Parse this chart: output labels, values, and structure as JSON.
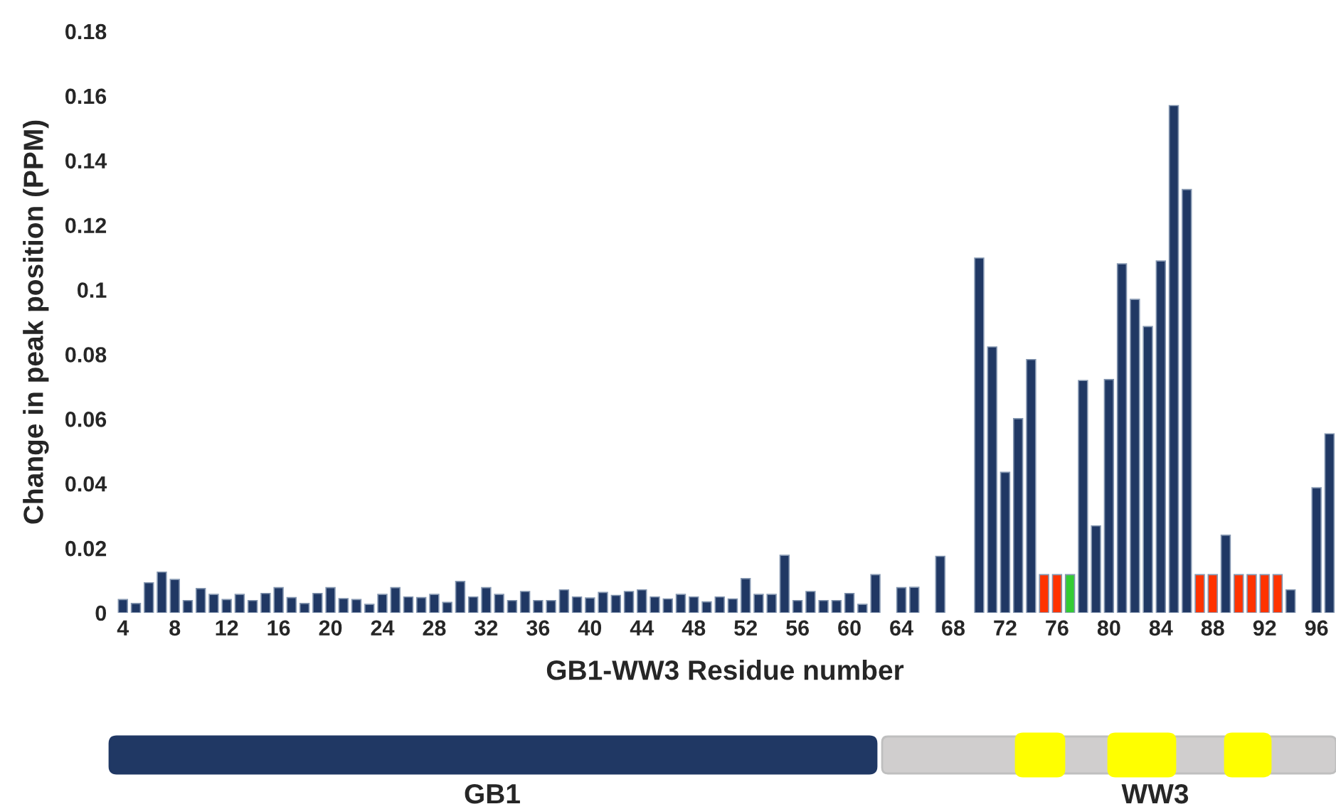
{
  "chart_data": {
    "type": "bar",
    "xlabel": "GB1-WW3 Residue number",
    "ylabel": "Change in peak position (PPM)",
    "categories": [
      "4",
      null,
      null,
      null,
      "8",
      null,
      null,
      null,
      "12",
      null,
      null,
      null,
      "16",
      null,
      null,
      null,
      "20",
      null,
      null,
      null,
      "24",
      null,
      null,
      null,
      "28",
      null,
      null,
      null,
      "32",
      null,
      null,
      null,
      "36",
      null,
      null,
      null,
      "40",
      null,
      null,
      null,
      "44",
      null,
      null,
      null,
      "48",
      null,
      null,
      null,
      "52",
      null,
      null,
      null,
      "56",
      null,
      null,
      null,
      "60",
      null,
      null,
      null,
      "64",
      null,
      null,
      null,
      "68",
      null,
      null,
      null,
      "72",
      null,
      null,
      null,
      "76",
      null,
      null,
      null,
      "80",
      null,
      null,
      null,
      "84",
      null,
      null,
      null,
      "88",
      null,
      null,
      null,
      "92",
      null,
      null,
      null,
      "96",
      null
    ],
    "values": [
      0.0041,
      0.0029,
      0.0093,
      0.0126,
      0.0103,
      0.0038,
      0.0075,
      0.0057,
      0.0041,
      0.0057,
      0.0038,
      0.006,
      0.0078,
      0.0047,
      0.0029,
      0.006,
      0.0078,
      0.0044,
      0.0041,
      0.0026,
      0.0057,
      0.0078,
      0.0049,
      0.0047,
      0.0057,
      0.0032,
      0.0097,
      0.0049,
      0.0078,
      0.0057,
      0.0038,
      0.0066,
      0.0038,
      0.0038,
      0.0071,
      0.0049,
      0.0046,
      0.0063,
      0.0054,
      0.0066,
      0.0071,
      0.0049,
      0.0043,
      0.0057,
      0.0049,
      0.0034,
      0.0049,
      0.0043,
      0.0106,
      0.0057,
      0.0057,
      0.0178,
      0.0038,
      0.0066,
      0.0038,
      0.0038,
      0.006,
      0.0026,
      0.0118,
      null,
      0.0078,
      0.0079,
      null,
      0.0175,
      null,
      null,
      0.1098,
      0.0823,
      0.0435,
      0.0601,
      0.0784,
      0.0118,
      0.0118,
      0.0118,
      0.0719,
      0.0269,
      0.0722,
      0.108,
      0.097,
      0.0886,
      0.1089,
      0.157,
      0.131,
      0.0118,
      0.0118,
      0.024,
      0.0118,
      0.0118,
      0.0118,
      0.0118,
      0.0071,
      null,
      0.0387,
      0.0554
    ],
    "colors": [
      "#203864",
      "#203864",
      "#203864",
      "#203864",
      "#203864",
      "#203864",
      "#203864",
      "#203864",
      "#203864",
      "#203864",
      "#203864",
      "#203864",
      "#203864",
      "#203864",
      "#203864",
      "#203864",
      "#203864",
      "#203864",
      "#203864",
      "#203864",
      "#203864",
      "#203864",
      "#203864",
      "#203864",
      "#203864",
      "#203864",
      "#203864",
      "#203864",
      "#203864",
      "#203864",
      "#203864",
      "#203864",
      "#203864",
      "#203864",
      "#203864",
      "#203864",
      "#203864",
      "#203864",
      "#203864",
      "#203864",
      "#203864",
      "#203864",
      "#203864",
      "#203864",
      "#203864",
      "#203864",
      "#203864",
      "#203864",
      "#203864",
      "#203864",
      "#203864",
      "#203864",
      "#203864",
      "#203864",
      "#203864",
      "#203864",
      "#203864",
      "#203864",
      "#203864",
      "#203864",
      "#203864",
      "#203864",
      "#203864",
      "#203864",
      "#203864",
      "#203864",
      "#203864",
      "#203864",
      "#203864",
      "#203864",
      "#203864",
      "#ff3300",
      "#ff3300",
      "#33cc33",
      "#203864",
      "#203864",
      "#203864",
      "#203864",
      "#203864",
      "#203864",
      "#203864",
      "#203864",
      "#203864",
      "#ff3300",
      "#ff3300",
      "#203864",
      "#ff3300",
      "#ff3300",
      "#ff3300",
      "#ff3300",
      "#203864",
      "#203864",
      "#203864",
      "#203864"
    ],
    "ylim": [
      0,
      0.18
    ],
    "yticks": [
      0,
      0.02,
      0.04,
      0.06,
      0.08,
      0.1,
      0.12,
      0.14,
      0.16,
      0.18
    ],
    "grid": false,
    "legend": false,
    "annotations": [
      "GB1",
      "WW3"
    ]
  }
}
